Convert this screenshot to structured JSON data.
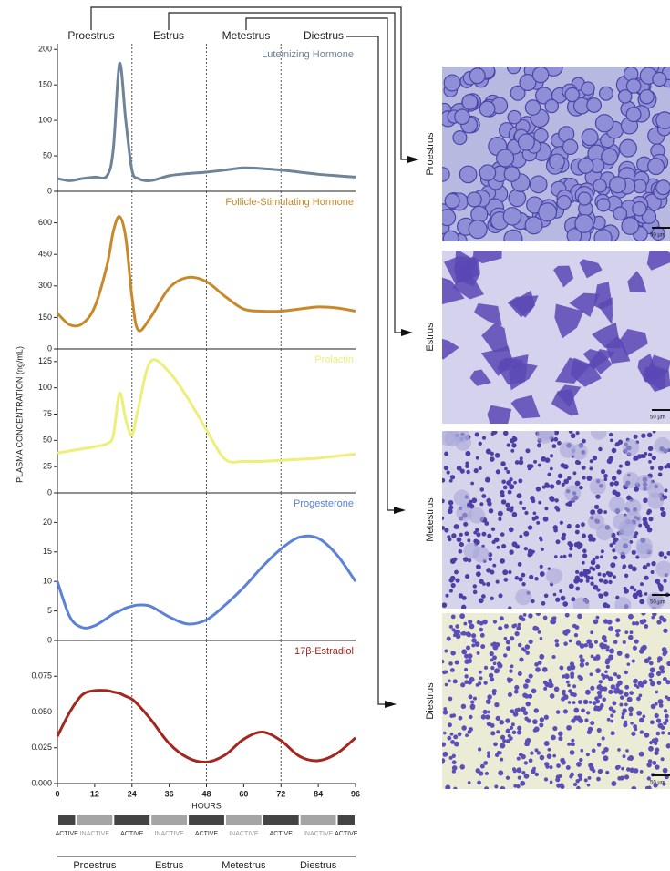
{
  "ylabel": "PLASMA CONCENTRATION (ng/mL)",
  "stages": [
    "Proestrus",
    "Estrus",
    "Metestrus",
    "Diestrus"
  ],
  "stage_boundaries": [
    24,
    48,
    72
  ],
  "activity": [
    "ACTIVE",
    "INACTIVE",
    "ACTIVE",
    "INACTIVE",
    "ACTIVE",
    "INACTIVE",
    "ACTIVE",
    "INACTIVE",
    "ACTIVE"
  ],
  "scale_label": "50 µm",
  "chart_data": [
    {
      "type": "line",
      "title": "Luteinizing Hormone",
      "color": "#6f8499",
      "x": [
        0,
        4,
        8,
        12,
        16,
        18,
        20,
        22,
        24,
        26,
        30,
        36,
        42,
        48,
        54,
        60,
        66,
        72,
        78,
        84,
        90,
        96
      ],
      "values": [
        18,
        15,
        18,
        20,
        22,
        60,
        180,
        100,
        30,
        18,
        15,
        22,
        25,
        27,
        30,
        33,
        32,
        30,
        27,
        24,
        22,
        20
      ],
      "xlim": [
        0,
        96
      ],
      "ylim": [
        0,
        208
      ],
      "yticks": [
        0,
        50,
        100,
        150,
        200
      ]
    },
    {
      "type": "line",
      "title": "Follicle-Stimulating Hormone",
      "color": "#c8892a",
      "x": [
        0,
        4,
        8,
        12,
        16,
        18,
        20,
        22,
        24,
        26,
        30,
        36,
        42,
        48,
        54,
        60,
        66,
        72,
        78,
        84,
        90,
        96
      ],
      "values": [
        170,
        115,
        120,
        200,
        400,
        560,
        630,
        530,
        250,
        90,
        150,
        290,
        340,
        320,
        250,
        190,
        180,
        180,
        190,
        200,
        195,
        180
      ],
      "xlim": [
        0,
        96
      ],
      "ylim": [
        0,
        750
      ],
      "yticks": [
        0,
        150,
        300,
        450,
        600
      ]
    },
    {
      "type": "line",
      "title": "Prolactin",
      "color": "#eeee7a",
      "x": [
        0,
        4,
        8,
        12,
        16,
        18,
        20,
        22,
        24,
        26,
        30,
        36,
        42,
        48,
        54,
        60,
        66,
        72,
        78,
        84,
        90,
        96
      ],
      "values": [
        38,
        40,
        42,
        44,
        47,
        55,
        95,
        70,
        55,
        80,
        125,
        115,
        90,
        60,
        32,
        30,
        30,
        31,
        32,
        33,
        35,
        37
      ],
      "xlim": [
        0,
        96
      ],
      "ylim": [
        0,
        137
      ],
      "yticks": [
        0,
        25,
        50,
        75,
        100,
        125
      ]
    },
    {
      "type": "line",
      "title": "Progesterone",
      "color": "#5b82d8",
      "x": [
        0,
        4,
        8,
        12,
        16,
        18,
        20,
        22,
        24,
        26,
        30,
        36,
        42,
        48,
        54,
        60,
        66,
        72,
        78,
        84,
        90,
        96
      ],
      "values": [
        10,
        4,
        2.2,
        2.5,
        3.8,
        4.5,
        5,
        5.5,
        5.8,
        6,
        5.8,
        4,
        2.8,
        3.5,
        6,
        9,
        12.5,
        15.5,
        17.5,
        17.3,
        14.5,
        10
      ],
      "xlim": [
        0,
        96
      ],
      "ylim": [
        0,
        25
      ],
      "yticks": [
        0,
        5,
        10,
        15,
        20
      ]
    },
    {
      "type": "line",
      "title": "17β-Estradiol",
      "color": "#a3261f",
      "x": [
        0,
        4,
        8,
        12,
        16,
        18,
        20,
        22,
        24,
        26,
        30,
        36,
        42,
        48,
        54,
        60,
        66,
        72,
        78,
        84,
        90,
        96
      ],
      "values": [
        0.033,
        0.05,
        0.062,
        0.065,
        0.065,
        0.064,
        0.063,
        0.061,
        0.059,
        0.055,
        0.045,
        0.028,
        0.018,
        0.015,
        0.02,
        0.031,
        0.036,
        0.03,
        0.019,
        0.016,
        0.021,
        0.032
      ],
      "xlim": [
        0,
        96
      ],
      "ylim": [
        0,
        0.1
      ],
      "yticks": [
        {
          "value": 0,
          "label": "0.000"
        },
        {
          "value": 0.025,
          "label": "0.025"
        },
        {
          "value": 0.05,
          "label": "0.050"
        },
        {
          "value": 0.075,
          "label": "0.075"
        }
      ],
      "xticks": [
        0,
        12,
        24,
        36,
        48,
        60,
        72,
        84,
        96
      ],
      "xlabel": "HOURS"
    }
  ]
}
